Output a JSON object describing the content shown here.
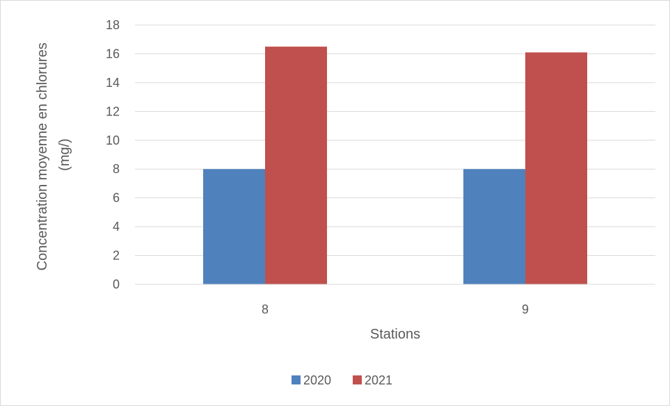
{
  "chart_data": {
    "type": "bar",
    "title": "",
    "xlabel": "Stations",
    "ylabel": "Concentration moyenne en chlorures (mg/)",
    "ylabel_lines": [
      "Concentration moyenne en chlorures",
      "(mg/)"
    ],
    "categories": [
      "8",
      "9"
    ],
    "series": [
      {
        "name": "2020",
        "values": [
          8,
          8
        ],
        "color": "#4f81bd"
      },
      {
        "name": "2021",
        "values": [
          16.5,
          16.1
        ],
        "color": "#c0504d"
      }
    ],
    "ylim": [
      0,
      18
    ],
    "yticks": [
      0,
      2,
      4,
      6,
      8,
      10,
      12,
      14,
      16,
      18
    ],
    "grid": true,
    "legend": "bottom"
  }
}
